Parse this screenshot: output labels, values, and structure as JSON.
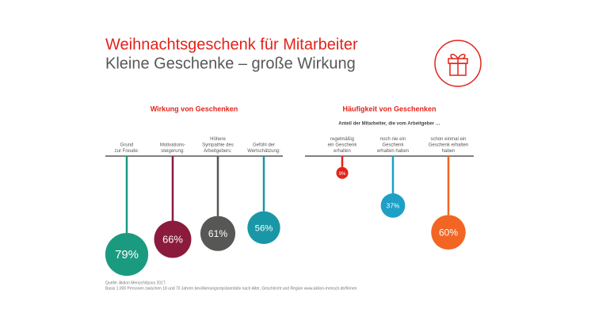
{
  "header": {
    "title": "Weihnachtsgeschenk für Mitarbeiter",
    "subtitle": "Kleine Geschenke – große Wirkung"
  },
  "chart_data": [
    {
      "type": "bauble",
      "title": "Wirkung von Geschenken",
      "categories": [
        "Grund\nzur Freude:",
        "Motivations-\nsteigerung:",
        "Höhere\nSympathie des\nArbeitgebers:",
        "Gefühl der\nWertschätzung:"
      ],
      "values": [
        79,
        66,
        61,
        56
      ],
      "value_labels": [
        "79%",
        "66%",
        "61%",
        "56%"
      ],
      "colors": [
        "#1a9b80",
        "#8a1b3d",
        "#575756",
        "#1a97a6"
      ]
    },
    {
      "type": "bauble",
      "title": "Häufigkeit von Geschenken",
      "subtitle": "Anteil der Mitarbeiter, die vom Arbeitgeber …",
      "categories": [
        "regelmäßig\nein Geschenk\nerhalten",
        "noch nie ein\nGeschenk\nerhalten haben",
        "schon einmal ein\nGeschenk erhalten\nhaben"
      ],
      "values": [
        9,
        37,
        60
      ],
      "value_labels": [
        "9%",
        "37%",
        "60%"
      ],
      "colors": [
        "#e2231a",
        "#1e9fc6",
        "#f26522"
      ]
    }
  ],
  "source": [
    "Quelle: Aktion Mensch/Ipsos 2017.",
    "Basis 1.000 Personen zwischen 18 und 70 Jahren bevölkerungsrepräsentativ nach Alter, Geschlecht und Region www.aktion-mensch.de/firmen"
  ]
}
